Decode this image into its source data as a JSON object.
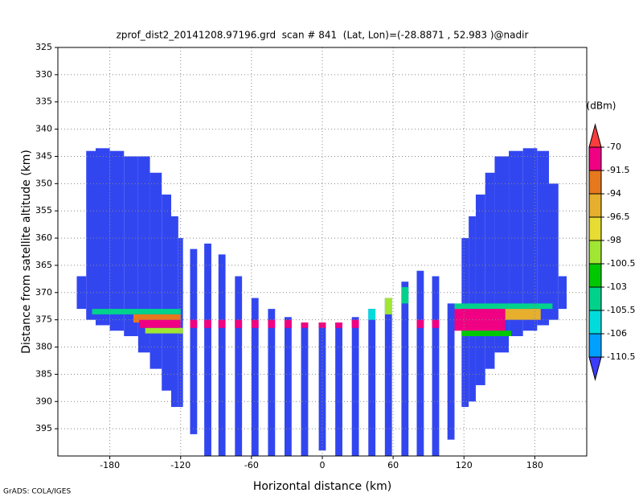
{
  "chart_data": {
    "type": "profile",
    "title": "zprof_dist2_20141208.97196.grd  scan # 841  (Lat, Lon)=(-28.8871 , 52.983 )@nadir",
    "x_label": "Horizontal distance (km)",
    "y_label": "Distance from satellite altitude (km)",
    "credit": "GrADS: COLA/IGES",
    "xlim": [
      -224,
      224
    ],
    "xticks": [
      -180,
      -120,
      -60,
      0,
      60,
      120,
      180
    ],
    "ylim": [
      400,
      325
    ],
    "yticks": [
      325,
      330,
      335,
      340,
      345,
      350,
      355,
      360,
      365,
      370,
      375,
      380,
      385,
      390,
      395
    ],
    "grid": true,
    "beam_color": "#3246f0",
    "beams": [
      [
        -208,
        -200,
        367,
        373
      ],
      [
        -200,
        -192,
        344,
        375
      ],
      [
        -192,
        -180,
        343.5,
        376
      ],
      [
        -180,
        -168,
        344,
        377
      ],
      [
        -168,
        -156,
        345,
        378
      ],
      [
        -156,
        -146,
        345,
        381
      ],
      [
        -146,
        -136,
        348,
        384
      ],
      [
        -136,
        -128,
        352,
        388
      ],
      [
        -128,
        -122,
        356,
        391
      ],
      [
        -122,
        -118,
        360,
        391
      ],
      [
        -112,
        -106,
        362,
        396
      ],
      [
        -100,
        -94,
        361,
        400
      ],
      [
        -88,
        -82,
        363,
        400
      ],
      [
        -74,
        -68,
        367,
        400
      ],
      [
        -60,
        -54,
        371,
        400
      ],
      [
        -46,
        -40,
        373,
        400
      ],
      [
        -32,
        -26,
        374.5,
        400
      ],
      [
        -18,
        -12,
        375.5,
        400
      ],
      [
        -3,
        3,
        375.5,
        399
      ],
      [
        11,
        17,
        375.5,
        400
      ],
      [
        25,
        31,
        374.5,
        400
      ],
      [
        39,
        45,
        373,
        400
      ],
      [
        53,
        59,
        371,
        400
      ],
      [
        67,
        73,
        368,
        400
      ],
      [
        80,
        86,
        366,
        400
      ],
      [
        93,
        99,
        367,
        400
      ],
      [
        106,
        112,
        372,
        397
      ],
      [
        118,
        124,
        360,
        391
      ],
      [
        124,
        130,
        356,
        390
      ],
      [
        130,
        138,
        352,
        387
      ],
      [
        138,
        146,
        348,
        384
      ],
      [
        146,
        158,
        345,
        381
      ],
      [
        158,
        170,
        344,
        378
      ],
      [
        170,
        182,
        343.5,
        377
      ],
      [
        182,
        192,
        344,
        376
      ],
      [
        192,
        200,
        350,
        375
      ],
      [
        200,
        207,
        367,
        373
      ]
    ],
    "bands": [
      [
        -195,
        -120,
        373,
        374,
        -105.5
      ],
      [
        -160,
        -120,
        374,
        375.5,
        -94
      ],
      [
        -155,
        -120,
        375,
        376.5,
        -91.5
      ],
      [
        -150,
        -118,
        376.5,
        377.5,
        -100.5
      ],
      [
        -112,
        -106,
        375,
        376.5,
        -91.5
      ],
      [
        -100,
        -94,
        375,
        376.5,
        -91.5
      ],
      [
        -88,
        -82,
        375,
        376.5,
        -91.5
      ],
      [
        -74,
        -68,
        375,
        376.5,
        -91.5
      ],
      [
        -60,
        -54,
        375,
        376.5,
        -91.5
      ],
      [
        -46,
        -40,
        375,
        376.5,
        -91.5
      ],
      [
        -32,
        -26,
        375,
        376.5,
        -91.5
      ],
      [
        -18,
        -12,
        375.5,
        376.5,
        -91.5
      ],
      [
        -3,
        3,
        375.5,
        376.5,
        -91.5
      ],
      [
        11,
        17,
        375.5,
        376.5,
        -91.5
      ],
      [
        25,
        31,
        375,
        376.5,
        -91.5
      ],
      [
        39,
        45,
        373,
        375,
        -106
      ],
      [
        53,
        59,
        371,
        374,
        -100.5
      ],
      [
        67,
        73,
        369,
        372,
        -105.5
      ],
      [
        80,
        86,
        375,
        376.5,
        -91.5
      ],
      [
        93,
        99,
        375,
        376.5,
        -91.5
      ],
      [
        112,
        195,
        372,
        373,
        -105.5
      ],
      [
        150,
        185,
        373,
        375,
        -96.5
      ],
      [
        112,
        155,
        373,
        377,
        -91.5
      ],
      [
        118,
        160,
        377,
        378,
        -103
      ]
    ],
    "colorbar": {
      "unit": "(dBm)",
      "levels": [
        -70,
        -91.5,
        -94,
        -96.5,
        -98,
        -100.5,
        -103,
        -105.5,
        -106,
        -110.5
      ],
      "colors": [
        "#fa3c3c",
        "#f00082",
        "#e6781e",
        "#e6af2d",
        "#e6dc32",
        "#a0e632",
        "#00c800",
        "#00d28c",
        "#00dcdc",
        "#00a0ff",
        "#3c3cff"
      ]
    }
  }
}
